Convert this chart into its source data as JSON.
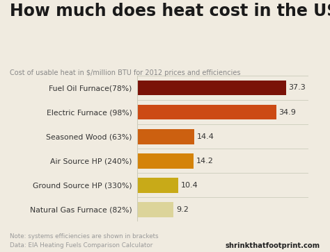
{
  "title": "How much does heat cost in the US?",
  "subtitle": "Cost of usable heat in $/million BTU for 2012 prices and efficiencies",
  "categories": [
    "Natural Gas Furnace (82%)",
    "Ground Source HP (330%)",
    "Air Source HP (240%)",
    "Seasoned Wood (63%)",
    "Electric Furnace (98%)",
    "Fuel Oil Furnace(78%)"
  ],
  "values": [
    9.2,
    10.4,
    14.2,
    14.4,
    34.9,
    37.3
  ],
  "bar_colors": [
    "#dcd49a",
    "#c8aa18",
    "#d4830a",
    "#cc6010",
    "#cc4a14",
    "#7a1208"
  ],
  "value_labels": [
    "9.2",
    "10.4",
    "14.2",
    "14.4",
    "34.9",
    "37.3"
  ],
  "note": "Note: systems efficiencies are shown in brackets",
  "data_source": "Data: EIA Heating Fuels Comparison Calculator",
  "brand": "shrinkthatfootprint.com",
  "bg_color": "#f0ebe0",
  "title_color": "#1a1a1a",
  "subtitle_color": "#888888",
  "bar_label_color": "#333333",
  "note_color": "#999999",
  "brand_color": "#222222",
  "xlim": [
    0,
    43
  ],
  "bar_height": 0.62,
  "separator_color": "#ccccbb"
}
